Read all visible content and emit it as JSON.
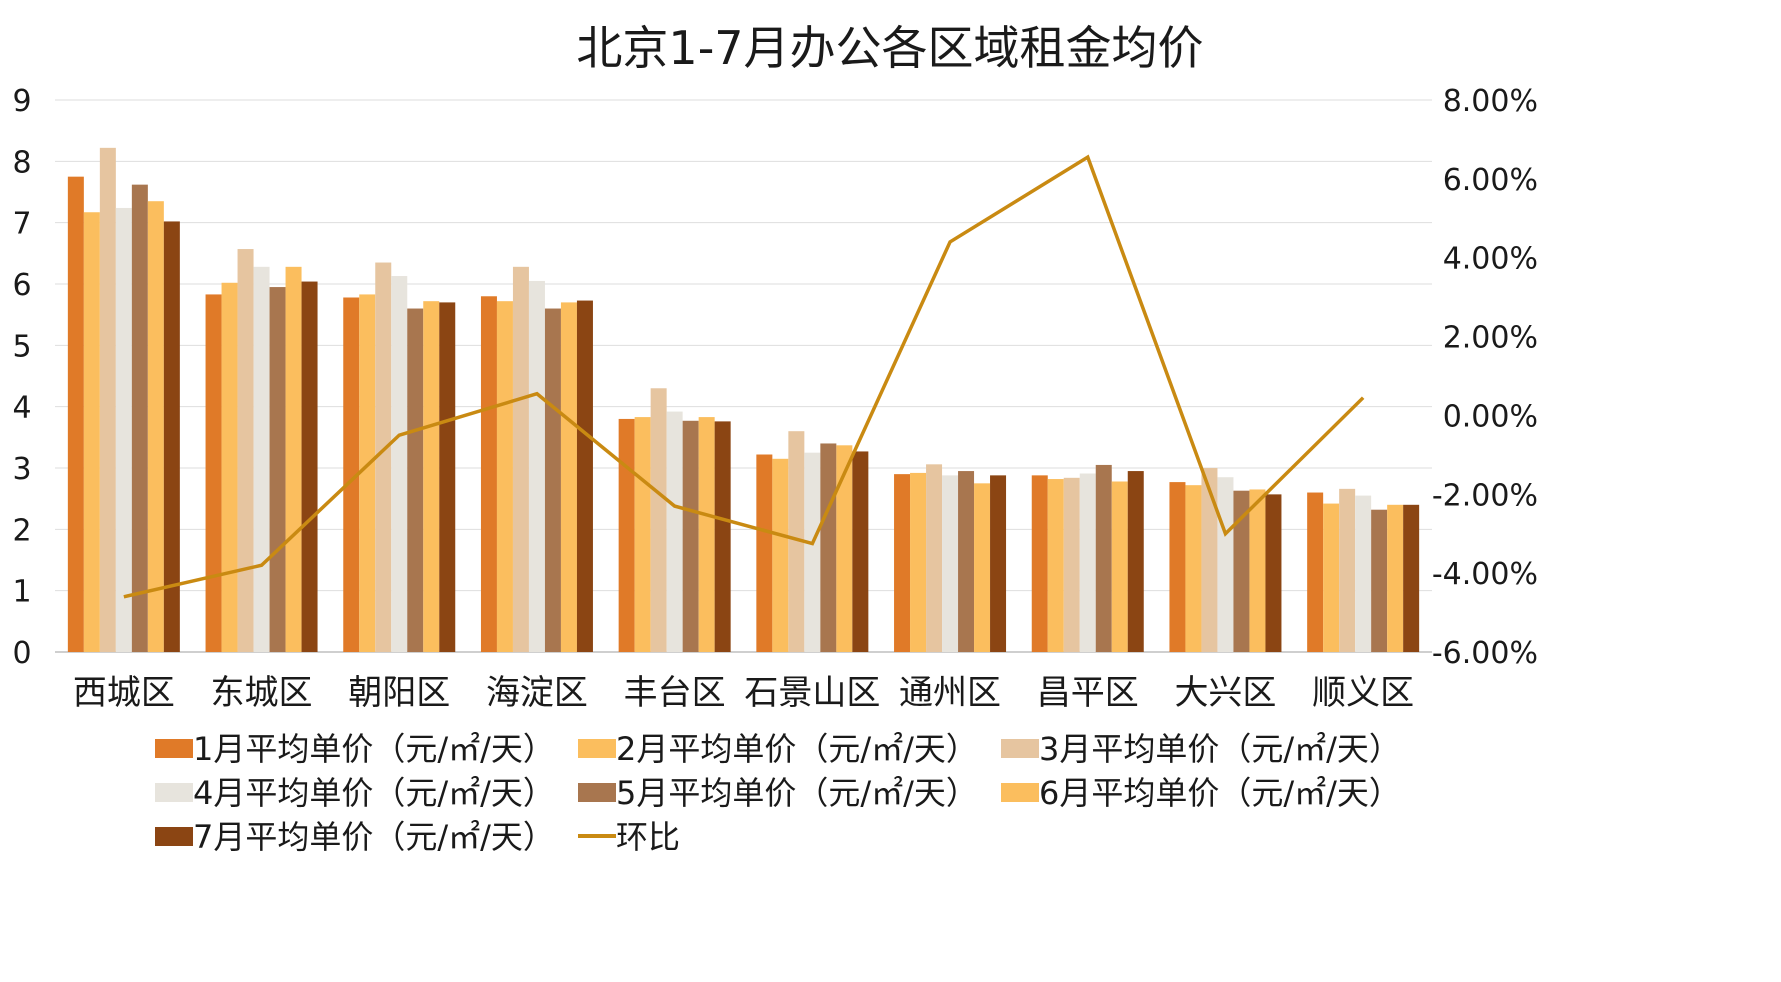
{
  "chart_data": {
    "type": "bar",
    "title": "北京1-7月办公各区域租金均价",
    "categories": [
      "西城区",
      "东城区",
      "朝阳区",
      "海淀区",
      "丰台区",
      "石景山区",
      "通州区",
      "昌平区",
      "大兴区",
      "顺义区"
    ],
    "ylim": [
      0,
      9
    ],
    "yticks": [
      "0",
      "1",
      "2",
      "3",
      "4",
      "5",
      "6",
      "7",
      "8",
      "9"
    ],
    "y2lim": [
      -6,
      8
    ],
    "y2ticks": [
      "-6.00%",
      "-4.00%",
      "-2.00%",
      "0.00%",
      "2.00%",
      "4.00%",
      "6.00%",
      "8.00%"
    ],
    "grid": true,
    "legend_position": "bottom",
    "series": [
      {
        "name": "1月平均单价（元/㎡/天）",
        "type": "bar",
        "color": "#E07A28",
        "values": [
          7.75,
          5.83,
          5.78,
          5.8,
          3.8,
          3.22,
          2.9,
          2.88,
          2.77,
          2.6
        ]
      },
      {
        "name": "2月平均单价（元/㎡/天）",
        "type": "bar",
        "color": "#FBBE5E",
        "values": [
          7.17,
          6.02,
          5.83,
          5.72,
          3.83,
          3.15,
          2.92,
          2.82,
          2.72,
          2.42
        ]
      },
      {
        "name": "3月平均单价（元/㎡/天）",
        "type": "bar",
        "color": "#E6C5A0",
        "values": [
          8.22,
          6.57,
          6.35,
          6.28,
          4.3,
          3.6,
          3.06,
          2.84,
          3.0,
          2.66
        ]
      },
      {
        "name": "4月平均单价（元/㎡/天）",
        "type": "bar",
        "color": "#E7E4DD",
        "values": [
          7.24,
          6.28,
          6.13,
          6.05,
          3.92,
          3.25,
          2.88,
          2.91,
          2.85,
          2.55
        ]
      },
      {
        "name": "5月平均单价（元/㎡/天）",
        "type": "bar",
        "color": "#A8764F",
        "values": [
          7.62,
          5.95,
          5.6,
          5.6,
          3.77,
          3.4,
          2.95,
          3.05,
          2.63,
          2.32
        ]
      },
      {
        "name": "6月平均单价（元/㎡/天）",
        "type": "bar",
        "color": "#FBBE5E",
        "values": [
          7.35,
          6.28,
          5.72,
          5.7,
          3.83,
          3.37,
          2.75,
          2.78,
          2.65,
          2.4
        ]
      },
      {
        "name": "7月平均单价（元/㎡/天）",
        "type": "bar",
        "color": "#8B4513",
        "values": [
          7.02,
          6.04,
          5.7,
          5.73,
          3.76,
          3.27,
          2.88,
          2.95,
          2.57,
          2.4
        ]
      },
      {
        "name": "环比",
        "type": "line",
        "axis": "right",
        "color": "#C98A12",
        "values": [
          -4.6,
          -3.8,
          -0.5,
          0.55,
          -2.3,
          -3.25,
          4.4,
          6.55,
          -3.0,
          0.45
        ]
      }
    ]
  }
}
